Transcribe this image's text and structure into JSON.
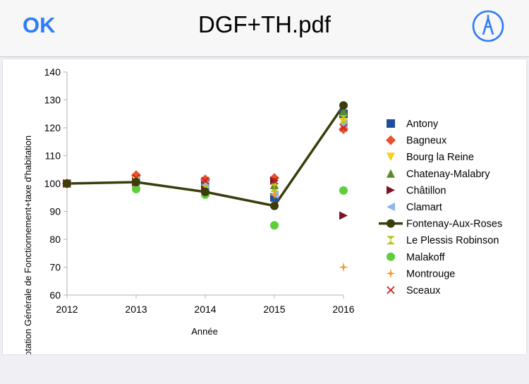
{
  "navbar": {
    "ok_label": "OK",
    "title": "DGF+TH.pdf",
    "markup_icon": "markup-pen-icon",
    "accent_color": "#2f7cf6"
  },
  "chart_data": {
    "type": "scatter",
    "xlabel": "Année",
    "ylabel": "Dotation Générale de Fonctionnement+taxe d'habitation",
    "x": [
      2012,
      2013,
      2014,
      2015,
      2016
    ],
    "xlim": [
      2012,
      2016
    ],
    "ylim": [
      60,
      140
    ],
    "yticks": [
      60,
      70,
      80,
      90,
      100,
      110,
      120,
      130,
      140
    ],
    "grid": false,
    "legend_position": "right",
    "series": [
      {
        "name": "Antony",
        "marker": "square",
        "color": "#1f4e9c",
        "values": [
          100,
          101.5,
          100.5,
          95,
          125
        ]
      },
      {
        "name": "Bagneux",
        "marker": "diamond",
        "color": "#e8532b",
        "values": [
          100,
          103,
          101.5,
          102,
          119.5
        ]
      },
      {
        "name": "Bourg la Reine",
        "marker": "triangle-down",
        "color": "#f5d020",
        "values": [
          100,
          101,
          97.5,
          97.5,
          122
        ]
      },
      {
        "name": "Chatenay-Malabry",
        "marker": "triangle-up",
        "color": "#5a8a2a",
        "values": [
          100,
          100,
          97,
          99.5,
          126
        ]
      },
      {
        "name": "Châtillon",
        "marker": "triangle-right",
        "color": "#7b1526",
        "values": [
          100,
          100.5,
          98,
          101,
          88.5
        ]
      },
      {
        "name": "Clamart",
        "marker": "triangle-left",
        "color": "#8ab8e8",
        "values": [
          100,
          101,
          99.5,
          96,
          121.5
        ]
      },
      {
        "name": "Fontenay-Aux-Roses",
        "marker": "circle-line",
        "color": "#3b3d0c",
        "values": [
          100,
          100.5,
          97,
          92,
          128
        ]
      },
      {
        "name": "Le Plessis Robinson",
        "marker": "hourglass",
        "color": "#b4c41c",
        "values": [
          100,
          100,
          98,
          98.5,
          123
        ]
      },
      {
        "name": "Malakoff",
        "marker": "circle",
        "color": "#5fce3a",
        "values": [
          100,
          98,
          96,
          85,
          97.5
        ]
      },
      {
        "name": "Montrouge",
        "marker": "star4",
        "color": "#f39a2a",
        "values": [
          100,
          100,
          97,
          96,
          70
        ]
      },
      {
        "name": "Sceaux",
        "marker": "x",
        "color": "#c9211e",
        "values": [
          100,
          102,
          101,
          101,
          120
        ]
      }
    ]
  }
}
